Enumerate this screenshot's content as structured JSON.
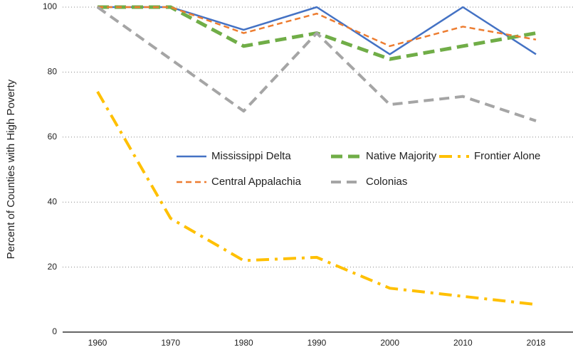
{
  "chart_data": {
    "type": "line",
    "y_label": "Percent of Counties with High Poverty",
    "categories": [
      "1960",
      "1970",
      "1980",
      "1990",
      "2000",
      "2010",
      "2018"
    ],
    "series": [
      {
        "name": "Mississippi Delta",
        "color": "#4472c4",
        "values": [
          100,
          100,
          93,
          100,
          85.5,
          100,
          85.5
        ]
      },
      {
        "name": "Native Majority",
        "color": "#70ad47",
        "values": [
          100,
          100,
          88,
          92,
          84,
          88,
          92
        ]
      },
      {
        "name": "Frontier Alone",
        "color": "#ffc000",
        "values": [
          74,
          35,
          22,
          23,
          13.5,
          11,
          8.5
        ]
      },
      {
        "name": "Central Appalachia",
        "color": "#ed7d31",
        "values": [
          100,
          100,
          92,
          98,
          88,
          94,
          90
        ]
      },
      {
        "name": "Colonias",
        "color": "#a5a5a5",
        "values": [
          100,
          84,
          68,
          92,
          70,
          72.5,
          65
        ]
      }
    ],
    "ylim": [
      0,
      100
    ],
    "yticks": [
      0,
      20,
      40,
      60,
      80,
      100
    ],
    "grid": true
  }
}
